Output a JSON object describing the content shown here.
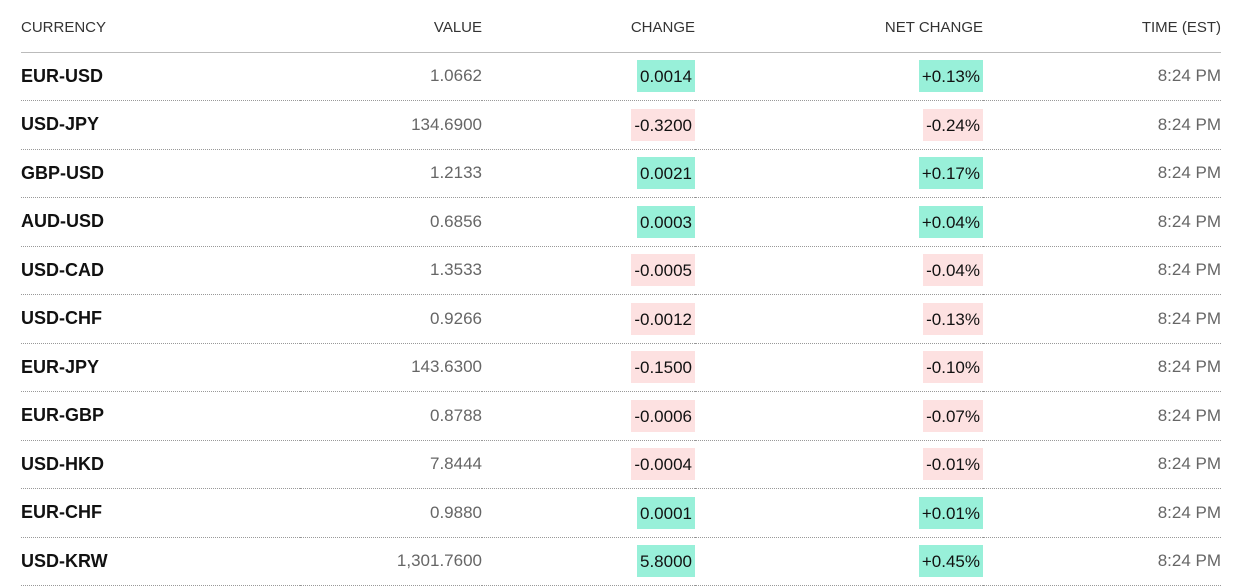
{
  "table": {
    "headers": [
      "CURRENCY",
      "VALUE",
      "CHANGE",
      "NET CHANGE",
      "TIME (EST)"
    ],
    "rows": [
      [
        "EUR-USD",
        "1.0662",
        "0.0014",
        "+0.13%",
        "8:24 PM"
      ],
      [
        "USD-JPY",
        "134.6900",
        "-0.3200",
        "-0.24%",
        "8:24 PM"
      ],
      [
        "GBP-USD",
        "1.2133",
        "0.0021",
        "+0.17%",
        "8:24 PM"
      ],
      [
        "AUD-USD",
        "0.6856",
        "0.0003",
        "+0.04%",
        "8:24 PM"
      ],
      [
        "USD-CAD",
        "1.3533",
        "-0.0005",
        "-0.04%",
        "8:24 PM"
      ],
      [
        "USD-CHF",
        "0.9266",
        "-0.0012",
        "-0.13%",
        "8:24 PM"
      ],
      [
        "EUR-JPY",
        "143.6300",
        "-0.1500",
        "-0.10%",
        "8:24 PM"
      ],
      [
        "EUR-GBP",
        "0.8788",
        "-0.0006",
        "-0.07%",
        "8:24 PM"
      ],
      [
        "USD-HKD",
        "7.8444",
        "-0.0004",
        "-0.01%",
        "8:24 PM"
      ],
      [
        "EUR-CHF",
        "0.9880",
        "0.0001",
        "+0.01%",
        "8:24 PM"
      ],
      [
        "USD-KRW",
        "1,301.7600",
        "5.8000",
        "+0.45%",
        "8:24 PM"
      ]
    ]
  }
}
